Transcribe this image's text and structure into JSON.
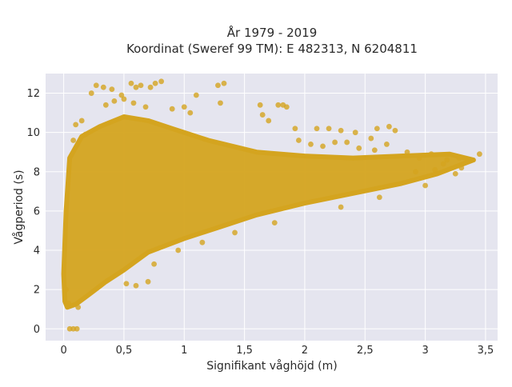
{
  "chart_data": {
    "type": "scatter",
    "title_line1": "År 1979 - 2019",
    "title_line2": "Koordinat (Sweref 99 TM): E 482313, N 6204811",
    "xlabel": "Signifikant våghöjd (m)",
    "ylabel": "Vågperiod (s)",
    "xlim": [
      -0.15,
      3.6
    ],
    "ylim": [
      -0.6,
      13.0
    ],
    "grid": true,
    "marker_color": "#d4a41f",
    "plot_background": "#e5e5ef",
    "grid_color": "#ffffff",
    "x_ticks": [
      {
        "value": 0,
        "label": "0"
      },
      {
        "value": 0.5,
        "label": "0,5"
      },
      {
        "value": 1,
        "label": "1"
      },
      {
        "value": 1.5,
        "label": "1,5"
      },
      {
        "value": 2,
        "label": "2"
      },
      {
        "value": 2.5,
        "label": "2,5"
      },
      {
        "value": 3,
        "label": "3"
      },
      {
        "value": 3.5,
        "label": "3,5"
      }
    ],
    "y_ticks": [
      {
        "value": 0,
        "label": "0"
      },
      {
        "value": 2,
        "label": "2"
      },
      {
        "value": 4,
        "label": "4"
      },
      {
        "value": 6,
        "label": "6"
      },
      {
        "value": 8,
        "label": "8"
      },
      {
        "value": 10,
        "label": "10"
      },
      {
        "value": 12,
        "label": "12"
      }
    ],
    "point_cloud_outline": [
      [
        0.03,
        1.1
      ],
      [
        0.1,
        1.25
      ],
      [
        0.2,
        1.7
      ],
      [
        0.35,
        2.4
      ],
      [
        0.5,
        3.0
      ],
      [
        0.7,
        3.9
      ],
      [
        1.0,
        4.6
      ],
      [
        1.3,
        5.2
      ],
      [
        1.6,
        5.8
      ],
      [
        2.0,
        6.4
      ],
      [
        2.4,
        6.9
      ],
      [
        2.8,
        7.4
      ],
      [
        3.1,
        7.9
      ],
      [
        3.4,
        8.6
      ],
      [
        3.2,
        8.9
      ],
      [
        2.8,
        8.8
      ],
      [
        2.4,
        8.7
      ],
      [
        2.0,
        8.8
      ],
      [
        1.6,
        9.0
      ],
      [
        1.2,
        9.6
      ],
      [
        0.9,
        10.2
      ],
      [
        0.7,
        10.6
      ],
      [
        0.5,
        10.8
      ],
      [
        0.3,
        10.3
      ],
      [
        0.15,
        9.8
      ],
      [
        0.05,
        8.7
      ],
      [
        0.02,
        6.0
      ],
      [
        0.0,
        2.8
      ],
      [
        0.01,
        1.4
      ]
    ],
    "outliers": [
      {
        "x": 0.05,
        "y": 0.0
      },
      {
        "x": 0.08,
        "y": 0.0
      },
      {
        "x": 0.11,
        "y": 0.0
      },
      {
        "x": 0.23,
        "y": 12.0
      },
      {
        "x": 0.27,
        "y": 12.4
      },
      {
        "x": 0.33,
        "y": 12.3
      },
      {
        "x": 0.4,
        "y": 12.2
      },
      {
        "x": 0.48,
        "y": 11.9
      },
      {
        "x": 0.56,
        "y": 12.5
      },
      {
        "x": 0.6,
        "y": 12.3
      },
      {
        "x": 0.64,
        "y": 12.4
      },
      {
        "x": 0.72,
        "y": 12.3
      },
      {
        "x": 0.76,
        "y": 12.5
      },
      {
        "x": 0.81,
        "y": 12.6
      },
      {
        "x": 1.28,
        "y": 12.4
      },
      {
        "x": 1.33,
        "y": 12.5
      },
      {
        "x": 1.3,
        "y": 11.5
      },
      {
        "x": 1.1,
        "y": 11.9
      },
      {
        "x": 1.63,
        "y": 11.4
      },
      {
        "x": 1.78,
        "y": 11.4
      },
      {
        "x": 1.82,
        "y": 11.4
      },
      {
        "x": 1.85,
        "y": 11.3
      },
      {
        "x": 1.65,
        "y": 10.9
      },
      {
        "x": 1.7,
        "y": 10.6
      },
      {
        "x": 1.92,
        "y": 10.2
      },
      {
        "x": 2.1,
        "y": 10.2
      },
      {
        "x": 2.2,
        "y": 10.2
      },
      {
        "x": 2.3,
        "y": 10.1
      },
      {
        "x": 2.42,
        "y": 10.0
      },
      {
        "x": 2.55,
        "y": 9.7
      },
      {
        "x": 2.6,
        "y": 10.2
      },
      {
        "x": 2.7,
        "y": 10.3
      },
      {
        "x": 2.75,
        "y": 10.1
      },
      {
        "x": 1.95,
        "y": 9.6
      },
      {
        "x": 2.05,
        "y": 9.4
      },
      {
        "x": 2.15,
        "y": 9.3
      },
      {
        "x": 2.25,
        "y": 9.5
      },
      {
        "x": 2.35,
        "y": 9.5
      },
      {
        "x": 2.45,
        "y": 9.2
      },
      {
        "x": 2.58,
        "y": 9.1
      },
      {
        "x": 2.68,
        "y": 9.4
      },
      {
        "x": 2.85,
        "y": 9.0
      },
      {
        "x": 3.05,
        "y": 8.9
      },
      {
        "x": 3.18,
        "y": 8.6
      },
      {
        "x": 3.28,
        "y": 8.7
      },
      {
        "x": 3.45,
        "y": 8.9
      },
      {
        "x": 3.3,
        "y": 8.2
      },
      {
        "x": 3.15,
        "y": 8.4
      },
      {
        "x": 2.95,
        "y": 8.7
      },
      {
        "x": 2.92,
        "y": 8.0
      },
      {
        "x": 3.08,
        "y": 8.1
      },
      {
        "x": 0.1,
        "y": 10.4
      },
      {
        "x": 0.15,
        "y": 10.6
      },
      {
        "x": 0.18,
        "y": 9.9
      },
      {
        "x": 0.08,
        "y": 9.6
      },
      {
        "x": 0.35,
        "y": 11.4
      },
      {
        "x": 0.42,
        "y": 11.6
      },
      {
        "x": 0.5,
        "y": 11.7
      },
      {
        "x": 0.58,
        "y": 11.5
      },
      {
        "x": 0.68,
        "y": 11.3
      },
      {
        "x": 0.9,
        "y": 11.2
      },
      {
        "x": 1.0,
        "y": 11.3
      },
      {
        "x": 1.05,
        "y": 11.0
      },
      {
        "x": 0.6,
        "y": 2.2
      },
      {
        "x": 0.7,
        "y": 2.4
      },
      {
        "x": 0.52,
        "y": 2.3
      },
      {
        "x": 0.75,
        "y": 3.3
      },
      {
        "x": 0.95,
        "y": 4.0
      },
      {
        "x": 1.15,
        "y": 4.4
      },
      {
        "x": 1.42,
        "y": 4.9
      },
      {
        "x": 1.75,
        "y": 5.4
      },
      {
        "x": 2.3,
        "y": 6.2
      },
      {
        "x": 2.62,
        "y": 6.7
      },
      {
        "x": 3.0,
        "y": 7.3
      },
      {
        "x": 3.25,
        "y": 7.9
      },
      {
        "x": 0.02,
        "y": 2.0
      },
      {
        "x": 0.04,
        "y": 1.3
      },
      {
        "x": 0.12,
        "y": 1.1
      }
    ]
  }
}
